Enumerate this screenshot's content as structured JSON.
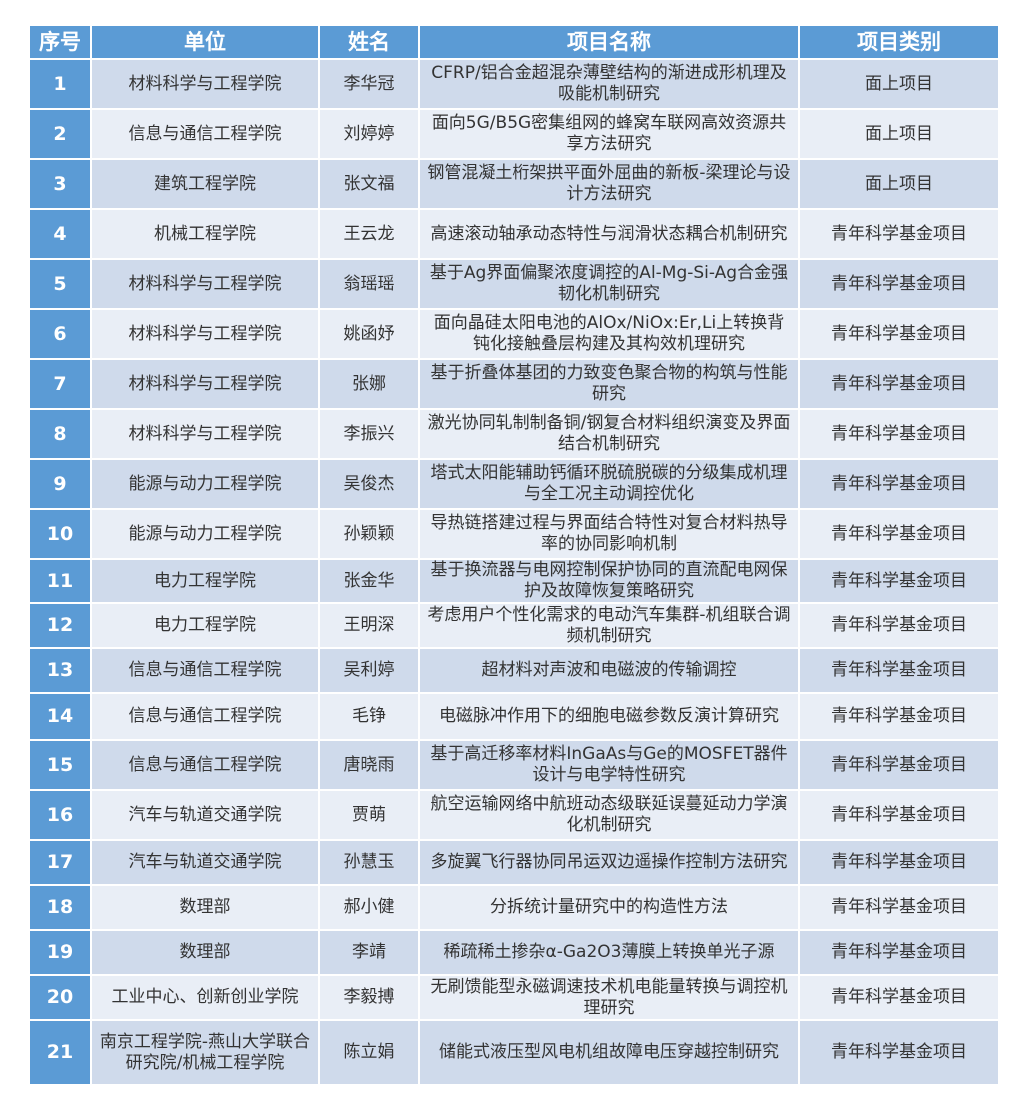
{
  "headers": [
    "序号",
    "单位",
    "姓名",
    "项目名称",
    "项目类别"
  ],
  "rows": [
    [
      "1",
      "材料科学与工程学院",
      "李华冠",
      "CFRP/铝合金超混杂薄壁结构的渐进成形机理及吸能机制研究",
      "面上项目"
    ],
    [
      "2",
      "信息与通信工程学院",
      "刘婷婷",
      "面向5G/B5G密集组网的蜂窝车联网高效资源共享方法研究",
      "面上项目"
    ],
    [
      "3",
      "建筑工程学院",
      "张文福",
      "钢管混凝土桁架拱平面外屈曲的新板-梁理论与设计方法研究",
      "面上项目"
    ],
    [
      "4",
      "机械工程学院",
      "王云龙",
      "高速滚动轴承动态特性与润滑状态耦合机制研究",
      "青年科学基金项目"
    ],
    [
      "5",
      "材料科学与工程学院",
      "翁瑶瑶",
      "基于Ag界面偏聚浓度调控的Al-Mg-Si-Ag合金强韧化机制研究",
      "青年科学基金项目"
    ],
    [
      "6",
      "材料科学与工程学院",
      "姚函妤",
      "面向晶硅太阳电池的AlOx/NiOx:Er,Li上转换背钝化接触叠层构建及其构效机理研究",
      "青年科学基金项目"
    ],
    [
      "7",
      "材料科学与工程学院",
      "张娜",
      "基于折叠体基团的力致变色聚合物的构筑与性能研究",
      "青年科学基金项目"
    ],
    [
      "8",
      "材料科学与工程学院",
      "李振兴",
      "激光协同轧制制备铜/钢复合材料组织演变及界面结合机制研究",
      "青年科学基金项目"
    ],
    [
      "9",
      "能源与动力工程学院",
      "吴俊杰",
      "塔式太阳能辅助钙循环脱硫脱碳的分级集成机理与全工况主动调控优化",
      "青年科学基金项目"
    ],
    [
      "10",
      "能源与动力工程学院",
      "孙颖颖",
      "导热链搭建过程与界面结合特性对复合材料热导率的协同影响机制",
      "青年科学基金项目"
    ],
    [
      "11",
      "电力工程学院",
      "张金华",
      "基于换流器与电网控制保护协同的直流配电网保护及故障恢复策略研究",
      "青年科学基金项目"
    ],
    [
      "12",
      "电力工程学院",
      "王明深",
      "考虑用户个性化需求的电动汽车集群-机组联合调频机制研究",
      "青年科学基金项目"
    ],
    [
      "13",
      "信息与通信工程学院",
      "吴利婷",
      "超材料对声波和电磁波的传输调控",
      "青年科学基金项目"
    ],
    [
      "14",
      "信息与通信工程学院",
      "毛铮",
      "电磁脉冲作用下的细胞电磁参数反演计算研究",
      "青年科学基金项目"
    ],
    [
      "15",
      "信息与通信工程学院",
      "唐晓雨",
      "基于高迁移率材料InGaAs与Ge的MOSFET器件设计与电学特性研究",
      "青年科学基金项目"
    ],
    [
      "16",
      "汽车与轨道交通学院",
      "贾萌",
      "航空运输网络中航班动态级联延误蔓延动力学演化机制研究",
      "青年科学基金项目"
    ],
    [
      "17",
      "汽车与轨道交通学院",
      "孙慧玉",
      "多旋翼飞行器协同吊运双边遥操作控制方法研究",
      "青年科学基金项目"
    ],
    [
      "18",
      "数理部",
      "郝小健",
      "分拆统计量研究中的构造性方法",
      "青年科学基金项目"
    ],
    [
      "19",
      "数理部",
      "李靖",
      "稀疏稀土掺杂α-Ga2O3薄膜上转换单光子源",
      "青年科学基金项目"
    ],
    [
      "20",
      "工业中心、创新创业学院",
      "李毅搏",
      "无刷馈能型永磁调速技术机电能量转换与调控机理研究",
      "青年科学基金项目"
    ],
    [
      "21",
      "南京工程学院-燕山大学联合研究院/机械工程学院",
      "陈立娟",
      "储能式液压型风电机组故障电压穿越控制研究",
      "青年科学基金项目"
    ]
  ],
  "colors": {
    "header": "#5b9bd5",
    "row_odd": "#cfdaeb",
    "row_even": "#e9eef6"
  }
}
